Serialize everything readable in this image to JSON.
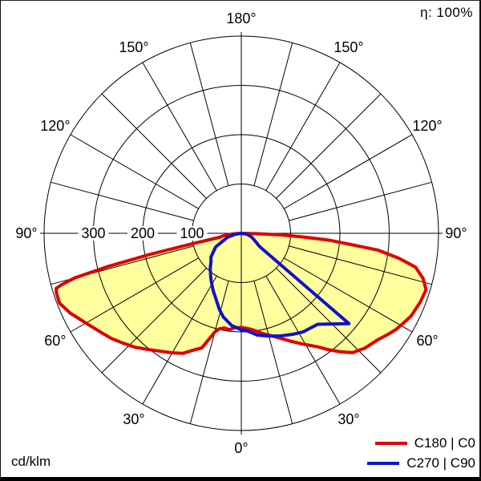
{
  "header": {
    "efficiency": "η: 100%"
  },
  "footer": {
    "units": "cd/klm"
  },
  "legend": {
    "items": [
      {
        "label": "C180 | C0",
        "color": "#df0000"
      },
      {
        "label": "C270 | C90",
        "color": "#1111cc"
      }
    ]
  },
  "chart_data": {
    "type": "polar_intensity_distribution",
    "title": "Luminous intensity distribution curve",
    "units": "cd/klm",
    "efficiency": "η: 100%",
    "grid_angle_step_deg": 15,
    "radial_circles": [
      100,
      200,
      300,
      400
    ],
    "scale_labels": [
      {
        "value": 300,
        "text": "300"
      },
      {
        "value": 200,
        "text": "200"
      },
      {
        "value": 100,
        "text": "100"
      }
    ],
    "angle_labels": [
      {
        "gamma": 0,
        "text": "0°"
      },
      {
        "gamma": 30,
        "text": "30°"
      },
      {
        "gamma": -30,
        "text": "30°"
      },
      {
        "gamma": 60,
        "text": "60°"
      },
      {
        "gamma": -60,
        "text": "60°"
      },
      {
        "gamma": 90,
        "text": "90°"
      },
      {
        "gamma": -90,
        "text": "90°"
      },
      {
        "gamma": 120,
        "text": "120°"
      },
      {
        "gamma": -120,
        "text": "120°"
      },
      {
        "gamma": 150,
        "text": "150°"
      },
      {
        "gamma": -150,
        "text": "150°"
      },
      {
        "gamma": 180,
        "text": "180°"
      }
    ],
    "series": [
      {
        "name": "C180 | C0",
        "color": "#df0000",
        "fill": "#ffff9e",
        "width": 4,
        "points": [
          [
            -90,
            0
          ],
          [
            -86,
            18
          ],
          [
            -82,
            38
          ],
          [
            -79.5,
            45
          ],
          [
            -78,
            100
          ],
          [
            -77,
            190
          ],
          [
            -76,
            280
          ],
          [
            -75,
            350
          ],
          [
            -74,
            380
          ],
          [
            -73.4,
            392
          ],
          [
            -72,
            394
          ],
          [
            -69,
            395
          ],
          [
            -65,
            383
          ],
          [
            -60,
            364
          ],
          [
            -55,
            349
          ],
          [
            -51,
            339
          ],
          [
            -47,
            327
          ],
          [
            -43,
            316
          ],
          [
            -39,
            303
          ],
          [
            -34,
            289
          ],
          [
            -30,
            280
          ],
          [
            -26,
            271
          ],
          [
            -22,
            255
          ],
          [
            -19,
            246
          ],
          [
            -17,
            225
          ],
          [
            -15,
            207
          ],
          [
            -13,
            199
          ],
          [
            -10,
            195
          ],
          [
            -7,
            197
          ],
          [
            -4,
            192
          ],
          [
            0,
            191
          ],
          [
            3,
            193
          ],
          [
            6,
            196
          ],
          [
            9,
            201
          ],
          [
            12,
            208
          ],
          [
            17,
            218
          ],
          [
            21,
            229
          ],
          [
            25,
            242
          ],
          [
            29,
            257
          ],
          [
            34,
            278
          ],
          [
            37,
            296
          ],
          [
            40,
            314
          ],
          [
            43,
            331
          ],
          [
            47,
            342
          ],
          [
            52,
            351
          ],
          [
            55,
            360
          ],
          [
            58,
            369
          ],
          [
            61,
            376
          ],
          [
            64,
            383
          ],
          [
            69,
            389
          ],
          [
            73,
            392
          ],
          [
            76,
            380
          ],
          [
            79,
            360
          ],
          [
            81,
            324
          ],
          [
            83,
            279
          ],
          [
            84,
            229
          ],
          [
            85.5,
            179
          ],
          [
            86.5,
            130
          ],
          [
            87.7,
            81
          ],
          [
            88.5,
            33
          ],
          [
            90,
            0
          ]
        ]
      },
      {
        "name": "C270 | C90",
        "color": "#1111cc",
        "fill": null,
        "width": 4,
        "points": [
          [
            -90,
            0
          ],
          [
            -80,
            12
          ],
          [
            -74,
            29
          ],
          [
            -62,
            59
          ],
          [
            -52,
            78
          ],
          [
            -47,
            84
          ],
          [
            -42,
            94
          ],
          [
            -36,
            106
          ],
          [
            -32,
            115
          ],
          [
            -26,
            130
          ],
          [
            -21,
            143
          ],
          [
            -16,
            161
          ],
          [
            -12,
            174
          ],
          [
            -6,
            188
          ],
          [
            0,
            196
          ],
          [
            4,
            199
          ],
          [
            9,
            209
          ],
          [
            15,
            216
          ],
          [
            21,
            223
          ],
          [
            27,
            230
          ],
          [
            32,
            236
          ],
          [
            40,
            241
          ],
          [
            45,
            260
          ],
          [
            50,
            285
          ],
          [
            54,
            46
          ],
          [
            60,
            33
          ],
          [
            70,
            22
          ],
          [
            80,
            12
          ],
          [
            90,
            0
          ]
        ]
      }
    ],
    "layout": {
      "gamma_zero_direction": "down",
      "gamma_max_deg": 180,
      "radial_max": 400,
      "grid": true,
      "legend_position": "bottom-right"
    }
  }
}
